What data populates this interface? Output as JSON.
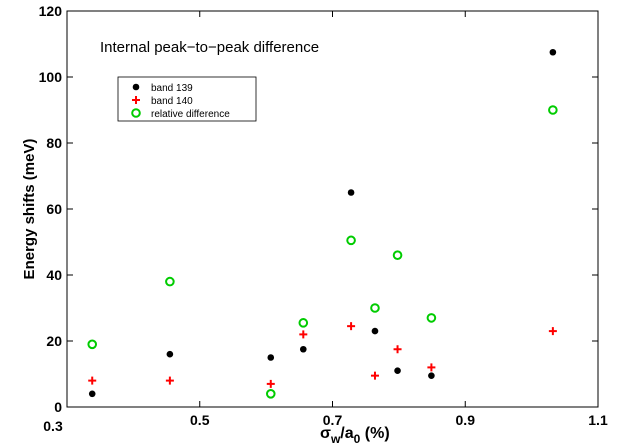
{
  "chart_data": {
    "type": "scatter",
    "annotation": "Internal peak−to−peak difference",
    "xlabel": {
      "base": "σ",
      "sub1": "w",
      "mid": "/a",
      "sub2": "0",
      "tail": " (%)"
    },
    "ylabel": "Energy shifts (meV)",
    "xlim": [
      0.3,
      1.1
    ],
    "ylim": [
      0,
      120
    ],
    "xticks": [
      {
        "value": 0.3,
        "label": "0.3"
      },
      {
        "value": 0.5,
        "label": "0.5"
      },
      {
        "value": 0.7,
        "label": "0.7"
      },
      {
        "value": 0.9,
        "label": "0.9"
      },
      {
        "value": 1.1,
        "label": "1.1"
      }
    ],
    "yticks": [
      {
        "value": 0,
        "label": "0"
      },
      {
        "value": 20,
        "label": "20"
      },
      {
        "value": 40,
        "label": "40"
      },
      {
        "value": 60,
        "label": "60"
      },
      {
        "value": 80,
        "label": "80"
      },
      {
        "value": 100,
        "label": "100"
      },
      {
        "value": 120,
        "label": "120"
      }
    ],
    "grid": false,
    "legend_position": "upper-left",
    "series": [
      {
        "name": "band 139",
        "marker": "dot",
        "color": "#000000",
        "x": [
          0.338,
          0.455,
          0.607,
          0.656,
          0.728,
          0.764,
          0.798,
          0.849,
          1.032
        ],
        "y": [
          4,
          16,
          15,
          17.5,
          65,
          23,
          11,
          9.5,
          107.5
        ]
      },
      {
        "name": "band 140",
        "marker": "plus",
        "color": "#ff0000",
        "x": [
          0.338,
          0.455,
          0.607,
          0.656,
          0.728,
          0.764,
          0.798,
          0.849,
          1.032
        ],
        "y": [
          8,
          8,
          7,
          22,
          24.5,
          9.5,
          17.5,
          12,
          23
        ]
      },
      {
        "name": "relative difference",
        "marker": "circle",
        "color": "#00cc00",
        "x": [
          0.338,
          0.455,
          0.607,
          0.656,
          0.728,
          0.764,
          0.798,
          0.849,
          1.032
        ],
        "y": [
          19,
          38,
          4,
          25.5,
          50.5,
          30,
          46,
          27,
          90
        ]
      }
    ]
  }
}
